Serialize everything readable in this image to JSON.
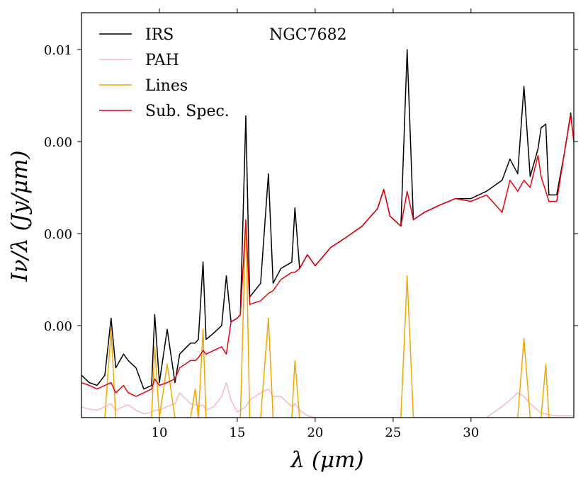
{
  "chart_data": {
    "type": "line",
    "annotation": "NGC7682",
    "xlabel": "λ (μm)",
    "ylabel": "Iν/λ (Jy/μm)",
    "legend": "upper left",
    "xlim": [
      5,
      36.6
    ],
    "ylim": [
      0.001,
      0.0054
    ],
    "xticks": [
      10,
      15,
      20,
      25,
      30
    ],
    "yticks": [
      {
        "value": 0.005,
        "label": "0.01"
      },
      {
        "value": 0.004,
        "label": "0.00"
      },
      {
        "value": 0.003,
        "label": "0.00"
      },
      {
        "value": 0.002,
        "label": "0.00"
      }
    ],
    "x": [
      5,
      5.5,
      6,
      6.5,
      6.9,
      7.2,
      7.7,
      8,
      8.5,
      9,
      9.5,
      9.7,
      10,
      10.5,
      11,
      11.3,
      12,
      12.3,
      12.5,
      12.8,
      13,
      13.5,
      14,
      14.3,
      14.6,
      15,
      15.2,
      15.55,
      15.8,
      16.5,
      17,
      17.3,
      17.8,
      18.5,
      18.7,
      19,
      19.5,
      20,
      21,
      22,
      23,
      24,
      24.4,
      24.8,
      25.5,
      25.9,
      26.3,
      27,
      28,
      29,
      30,
      31,
      32,
      32.5,
      33,
      33.4,
      33.8,
      34.3,
      34.5,
      34.8,
      35,
      35.5,
      36,
      36.4,
      36.6
    ],
    "series": [
      {
        "name": "IRS",
        "color": "#000000",
        "values": [
          0.00146,
          0.00138,
          0.00135,
          0.00146,
          0.00208,
          0.00154,
          0.00169,
          0.00162,
          0.00154,
          0.00131,
          0.00135,
          0.00212,
          0.00138,
          0.00196,
          0.00138,
          0.00169,
          0.00181,
          0.00181,
          0.00185,
          0.00269,
          0.00185,
          0.00192,
          0.002,
          0.00254,
          0.00204,
          0.00208,
          0.00212,
          0.00428,
          0.00231,
          0.00246,
          0.00365,
          0.00246,
          0.00262,
          0.00269,
          0.00328,
          0.00262,
          0.00277,
          0.00265,
          0.00285,
          0.00296,
          0.00308,
          0.00327,
          0.00348,
          0.00319,
          0.00308,
          0.005,
          0.00315,
          0.00323,
          0.00331,
          0.00338,
          0.00338,
          0.00346,
          0.00358,
          0.00381,
          0.00365,
          0.0046,
          0.00362,
          0.00392,
          0.00415,
          0.00419,
          0.00342,
          0.00342,
          0.00388,
          0.00431,
          0.004
        ]
      },
      {
        "name": "PAH",
        "color": "#f4b8c6",
        "values": [
          0.00112,
          0.00109,
          0.00108,
          0.00112,
          0.00115,
          0.00108,
          0.00112,
          0.00114,
          0.00108,
          0.00104,
          0.00106,
          0.00108,
          0.00108,
          0.00112,
          0.00115,
          0.00127,
          0.00115,
          0.00114,
          0.00112,
          0.00114,
          0.00108,
          0.00112,
          0.00123,
          0.00138,
          0.00119,
          0.00106,
          0.00108,
          0.00112,
          0.00119,
          0.00127,
          0.00131,
          0.00123,
          0.00123,
          0.00112,
          0.00115,
          0.00108,
          0.00102,
          0.001,
          0.001,
          0.001,
          0.001,
          0.001,
          0.001,
          0.001,
          0.001,
          0.001,
          0.001,
          0.001,
          0.001,
          0.001,
          0.001,
          0.001,
          0.00112,
          0.00119,
          0.00127,
          0.00123,
          0.00115,
          0.00108,
          0.00105,
          0.00104,
          0.00103,
          0.00102,
          0.00102,
          0.00102,
          0.00102
        ]
      },
      {
        "name": "Lines",
        "color": "#f5a500",
        "values": [
          0.001,
          0.001,
          0.001,
          0.001,
          0.00196,
          0.001,
          0.001,
          0.001,
          0.001,
          0.001,
          0.001,
          0.00177,
          0.001,
          0.00158,
          0.001,
          0.001,
          0.001,
          0.00131,
          0.001,
          0.00196,
          0.001,
          0.001,
          0.001,
          0.001,
          0.001,
          0.001,
          0.001,
          0.00315,
          0.001,
          0.001,
          0.00208,
          0.001,
          0.001,
          0.001,
          0.00162,
          0.001,
          0.001,
          0.001,
          0.001,
          0.001,
          0.001,
          0.001,
          0.001,
          0.001,
          0.001,
          0.00254,
          0.001,
          0.001,
          0.001,
          0.001,
          0.001,
          0.001,
          0.001,
          0.001,
          0.001,
          0.00186,
          0.001,
          0.001,
          0.001,
          0.00158,
          0.001,
          0.001,
          0.001,
          0.001,
          0.001
        ]
      },
      {
        "name": "Sub. Spec.",
        "color": "#e8000b",
        "values": [
          0.00138,
          0.00135,
          0.00131,
          0.00135,
          0.00138,
          0.00127,
          0.00135,
          0.00127,
          0.00123,
          0.00127,
          0.00131,
          0.00142,
          0.00135,
          0.00138,
          0.00142,
          0.00154,
          0.00162,
          0.00162,
          0.00165,
          0.00173,
          0.00169,
          0.00173,
          0.00177,
          0.00169,
          0.00204,
          0.00208,
          0.00212,
          0.00315,
          0.00223,
          0.00227,
          0.00235,
          0.00238,
          0.0025,
          0.00258,
          0.00258,
          0.00262,
          0.00277,
          0.00265,
          0.00285,
          0.00296,
          0.00308,
          0.00327,
          0.00348,
          0.00319,
          0.00308,
          0.00346,
          0.00315,
          0.00323,
          0.00331,
          0.00338,
          0.00335,
          0.00342,
          0.00323,
          0.00358,
          0.00346,
          0.00358,
          0.0035,
          0.00385,
          0.00362,
          0.00346,
          0.00335,
          0.00335,
          0.00388,
          0.00429,
          0.004
        ]
      }
    ]
  }
}
